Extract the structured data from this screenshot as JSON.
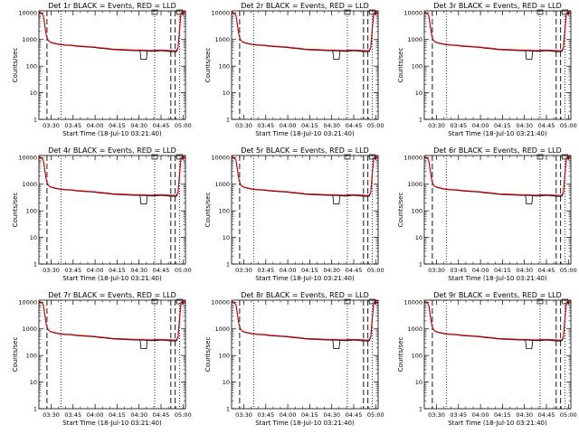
{
  "chart_data": {
    "type": "line",
    "panels": [
      {
        "title": "Det 1r BLACK = Events, RED = LLD"
      },
      {
        "title": "Det 2r BLACK = Events, RED = LLD"
      },
      {
        "title": "Det 3r BLACK = Events, RED = LLD"
      },
      {
        "title": "Det 4r BLACK = Events, RED = LLD"
      },
      {
        "title": "Det 5r BLACK = Events, RED = LLD"
      },
      {
        "title": "Det 6r BLACK = Events, RED = LLD"
      },
      {
        "title": "Det 7r BLACK = Events, RED = LLD"
      },
      {
        "title": "Det 8r BLACK = Events, RED = LLD"
      },
      {
        "title": "Det 9r BLACK = Events, RED = LLD"
      }
    ],
    "xlabel": "Start Time (18-Jul-10 03:21:40)",
    "ylabel": "Counts/sec",
    "yscale": "log",
    "ylim": [
      1,
      12000
    ],
    "xlim_minutes": [
      0,
      100
    ],
    "x_ticks": [
      "03:30",
      "03:45",
      "04:00",
      "04:15",
      "04:30",
      "04:45",
      "05:00"
    ],
    "x_tick_minutes": [
      8.33,
      23.33,
      38.33,
      53.33,
      68.33,
      83.33,
      98.33
    ],
    "y_ticks": [
      "1",
      "10",
      "100",
      "1000",
      "10000"
    ],
    "y_tick_values": [
      1,
      10,
      100,
      1000,
      10000
    ],
    "series": [
      {
        "name": "Events",
        "color": "#000000",
        "x": [
          0,
          1,
          2,
          3,
          4,
          5,
          6,
          7,
          8,
          10,
          14,
          18,
          22,
          26,
          30,
          34,
          38,
          42,
          46,
          50,
          54,
          58,
          62,
          66,
          70,
          74,
          77,
          80,
          84,
          88,
          92,
          94,
          95,
          96,
          97,
          98,
          99,
          100
        ],
        "y": [
          11000,
          10500,
          9500,
          8000,
          3500,
          1500,
          1000,
          850,
          780,
          720,
          650,
          610,
          600,
          560,
          540,
          520,
          500,
          470,
          450,
          420,
          410,
          400,
          390,
          380,
          380,
          370,
          360,
          370,
          380,
          360,
          350,
          360,
          500,
          2500,
          10000,
          11000,
          11000,
          11000
        ]
      },
      {
        "name": "LLD",
        "color": "#dd0000",
        "x": [
          0,
          1,
          2,
          3,
          4,
          5,
          6,
          7,
          8,
          10,
          14,
          18,
          22,
          26,
          30,
          34,
          38,
          42,
          46,
          50,
          54,
          58,
          62,
          66,
          70,
          74,
          77,
          80,
          84,
          88,
          92,
          94,
          95,
          96,
          97,
          98,
          99,
          100
        ],
        "y": [
          11000,
          10500,
          9500,
          8000,
          3500,
          1500,
          1000,
          860,
          800,
          740,
          670,
          630,
          615,
          580,
          560,
          540,
          520,
          490,
          470,
          440,
          430,
          420,
          410,
          400,
          400,
          390,
          385,
          395,
          400,
          390,
          380,
          390,
          520,
          2600,
          10000,
          11000,
          11000,
          11000
        ]
      }
    ],
    "dips": [
      {
        "x": 71.5,
        "y": 180,
        "panels": [
          1,
          2,
          3,
          4,
          5,
          6,
          7,
          8,
          9
        ]
      }
    ],
    "vlines_dotted_minutes": [
      15,
      79,
      96
    ],
    "vlines_dashed_minutes": [
      5.5,
      90,
      93
    ],
    "grid": false,
    "legend": "none"
  }
}
